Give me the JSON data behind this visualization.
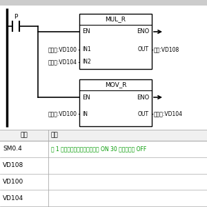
{
  "bg_color": "#e8e8e8",
  "ladder_bg": "#ffffff",
  "header_bar_color": "#cccccc",
  "text_color": "#000000",
  "green_text_color": "#009900",
  "table_line_color": "#aaaaaa",
  "contact_label": "P",
  "block1_name": "MUL_R",
  "block1_en": "EN",
  "block1_eno": "ENO",
  "block1_in1_label": "当前值:VD100",
  "block1_in1": "IN1",
  "block1_in2_label": "上次值:VD104",
  "block1_in2": "IN2",
  "block1_out_label": "差值:VD108",
  "block1_out": "OUT",
  "block2_name": "MOV_R",
  "block2_en": "EN",
  "block2_eno": "ENO",
  "block2_in_label": "当前值:VD100",
  "block2_in": "IN",
  "block2_out_label": "上次值:VD104",
  "block2_out": "OUT",
  "table_headers": [
    "地址",
    "注释"
  ],
  "table_rows": [
    [
      "SM0.4",
      "在 1 分钟的循环周期内，接通为 ON 30 秒，关断为 OFF"
    ],
    [
      "VD108",
      ""
    ],
    [
      "VD100",
      ""
    ],
    [
      "VD104",
      ""
    ]
  ],
  "figsize": [
    3.0,
    3.0
  ],
  "dpi": 100
}
